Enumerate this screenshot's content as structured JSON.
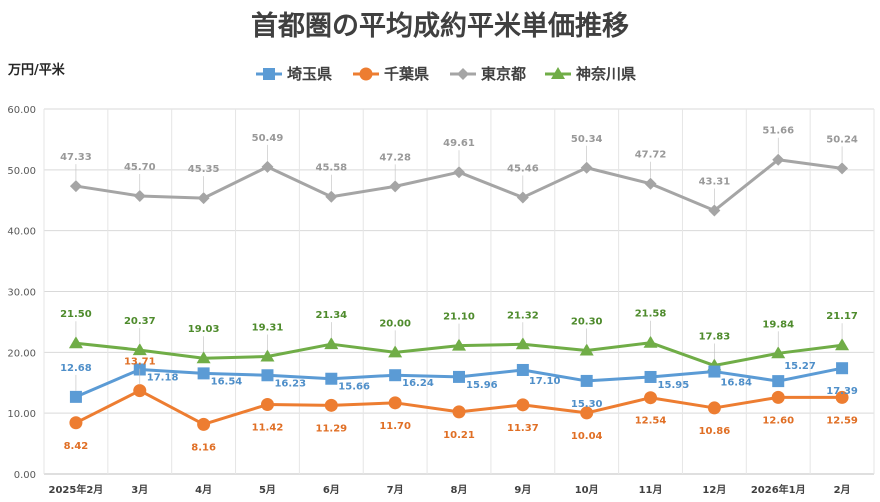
{
  "chart_data": {
    "type": "line",
    "title": "首都圏の平均成約平米単価推移",
    "ylabel": "万円/平米",
    "xlabel": "",
    "ylim": [
      0,
      60
    ],
    "yticks": [
      "0.00",
      "10.00",
      "20.00",
      "30.00",
      "40.00",
      "50.00",
      "60.00"
    ],
    "grid": true,
    "legend_position": "top",
    "categories": [
      "2025年2月",
      "3月",
      "4月",
      "5月",
      "6月",
      "7月",
      "8月",
      "9月",
      "10月",
      "11月",
      "12月",
      "2026年1月",
      "2月"
    ],
    "series": [
      {
        "name": "埼玉県",
        "color": "#5b9bd5",
        "marker": "square",
        "values": [
          12.68,
          17.18,
          16.54,
          16.23,
          15.66,
          16.24,
          15.96,
          17.1,
          15.3,
          15.95,
          16.84,
          15.27,
          17.39
        ],
        "labels": [
          "12.68",
          "17.18",
          "16.54",
          "16.23",
          "15.66",
          "16.24",
          "15.96",
          "17.10",
          "15.30",
          "15.95",
          "16.84",
          "15.27",
          "17.39"
        ]
      },
      {
        "name": "千葉県",
        "color": "#ed7d31",
        "marker": "circle",
        "values": [
          8.42,
          13.71,
          8.16,
          11.42,
          11.29,
          11.7,
          10.21,
          11.37,
          10.04,
          12.54,
          10.86,
          12.6,
          12.59
        ],
        "labels": [
          "8.42",
          "13.71",
          "8.16",
          "11.42",
          "11.29",
          "11.70",
          "10.21",
          "11.37",
          "10.04",
          "12.54",
          "10.86",
          "12.60",
          "12.59"
        ]
      },
      {
        "name": "東京都",
        "color": "#a5a5a5",
        "marker": "diamond",
        "values": [
          47.33,
          45.7,
          45.35,
          50.49,
          45.58,
          47.28,
          49.61,
          45.46,
          50.34,
          47.72,
          43.31,
          51.66,
          50.24
        ],
        "labels": [
          "47.33",
          "45.70",
          "45.35",
          "50.49",
          "45.58",
          "47.28",
          "49.61",
          "45.46",
          "50.34",
          "47.72",
          "43.31",
          "51.66",
          "50.24"
        ]
      },
      {
        "name": "神奈川県",
        "color": "#70ad47",
        "marker": "triangle",
        "values": [
          21.5,
          20.37,
          19.03,
          19.31,
          21.34,
          20.0,
          21.1,
          21.32,
          20.3,
          21.58,
          17.83,
          19.84,
          21.17
        ],
        "labels": [
          "21.50",
          "20.37",
          "19.03",
          "19.31",
          "21.34",
          "20.00",
          "21.10",
          "21.32",
          "20.30",
          "21.58",
          "17.83",
          "19.84",
          "21.17"
        ]
      }
    ]
  }
}
